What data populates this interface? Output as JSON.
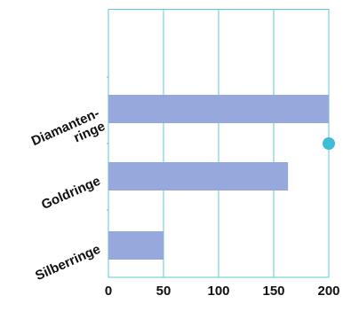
{
  "chart_data": {
    "type": "bar",
    "orientation": "horizontal",
    "title": "",
    "xlabel": "",
    "ylabel": "",
    "categories": [
      {
        "lines": [
          "Diamanten-",
          "ringe"
        ],
        "value": 200
      },
      {
        "lines": [
          "Goldringe"
        ],
        "value": 163
      },
      {
        "lines": [
          "Silberringe"
        ],
        "value": 50
      }
    ],
    "xlim": [
      0,
      200
    ],
    "xticks": [
      0,
      50,
      100,
      150,
      200
    ],
    "grid": true,
    "legend": "none",
    "marker_value": 200,
    "marker_between": [
      "Diamanten-ringe",
      "Goldringe"
    ]
  },
  "colors": {
    "bar": "#97a8dd",
    "grid": "#5cc9d3",
    "marker": "#3fbcd7",
    "text": "#111111"
  }
}
